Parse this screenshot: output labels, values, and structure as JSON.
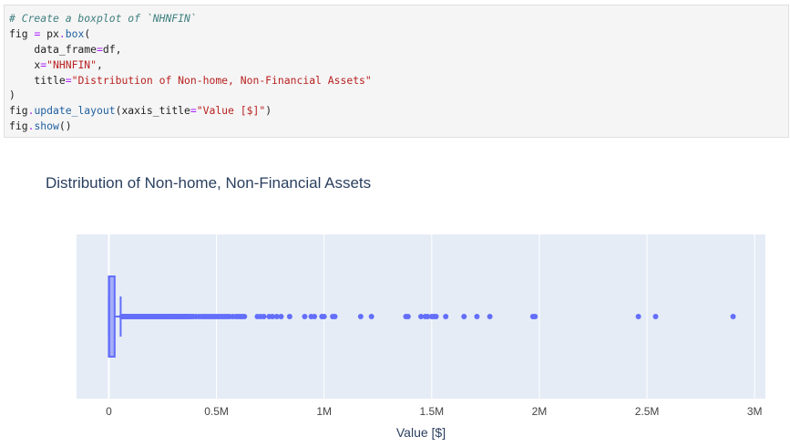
{
  "code_cell": {
    "lines": [
      [
        {
          "t": "# Create a boxplot of `NHNFIN`",
          "c": "comment"
        }
      ],
      [
        {
          "t": "fig ",
          "c": "plain"
        },
        {
          "t": "=",
          "c": "op"
        },
        {
          "t": " px",
          "c": "plain"
        },
        {
          "t": ".",
          "c": "op"
        },
        {
          "t": "box",
          "c": "attr"
        },
        {
          "t": "(",
          "c": "plain"
        }
      ],
      [
        {
          "t": "    data_frame",
          "c": "plain"
        },
        {
          "t": "=",
          "c": "op"
        },
        {
          "t": "df,",
          "c": "plain"
        }
      ],
      [
        {
          "t": "    x",
          "c": "plain"
        },
        {
          "t": "=",
          "c": "op"
        },
        {
          "t": "\"NHNFIN\"",
          "c": "str"
        },
        {
          "t": ",",
          "c": "plain"
        }
      ],
      [
        {
          "t": "    title",
          "c": "plain"
        },
        {
          "t": "=",
          "c": "op"
        },
        {
          "t": "\"Distribution of Non-home, Non-Financial Assets\"",
          "c": "str"
        }
      ],
      [
        {
          "t": ")",
          "c": "plain"
        }
      ],
      [
        {
          "t": "fig",
          "c": "plain"
        },
        {
          "t": ".",
          "c": "op"
        },
        {
          "t": "update_layout",
          "c": "attr"
        },
        {
          "t": "(xaxis_title",
          "c": "plain"
        },
        {
          "t": "=",
          "c": "op"
        },
        {
          "t": "\"Value [$]\"",
          "c": "str"
        },
        {
          "t": ")",
          "c": "plain"
        }
      ],
      [
        {
          "t": "fig",
          "c": "plain"
        },
        {
          "t": ".",
          "c": "op"
        },
        {
          "t": "show",
          "c": "attr"
        },
        {
          "t": "()",
          "c": "plain"
        }
      ]
    ]
  },
  "colors": {
    "plot_bg": "#e5ecf6",
    "grid": "#ffffff",
    "box": "#636efa",
    "text": "#2a3f5f",
    "tick_text": "#444444"
  },
  "chart_data": {
    "type": "box",
    "title": "Distribution of Non-home, Non-Financial Assets",
    "xlabel": "Value [$]",
    "ylabel": "",
    "xlim": [
      -150000,
      3050000
    ],
    "grid": true,
    "ticks": [
      {
        "value": 0,
        "label": "0"
      },
      {
        "value": 500000,
        "label": "0.5M"
      },
      {
        "value": 1000000,
        "label": "1M"
      },
      {
        "value": 1500000,
        "label": "1.5M"
      },
      {
        "value": 2000000,
        "label": "2M"
      },
      {
        "value": 2500000,
        "label": "2.5M"
      },
      {
        "value": 3000000,
        "label": "3M"
      }
    ],
    "series": [
      {
        "min": 0,
        "q1": 0,
        "median": 2000,
        "q3": 27000,
        "upper_fence": 55000,
        "outliers": [
          60000,
          65000,
          70000,
          75000,
          80000,
          85000,
          90000,
          95000,
          100000,
          105000,
          110000,
          115000,
          120000,
          125000,
          130000,
          135000,
          140000,
          145000,
          150000,
          155000,
          160000,
          165000,
          170000,
          175000,
          180000,
          185000,
          190000,
          195000,
          200000,
          205000,
          210000,
          215000,
          220000,
          225000,
          230000,
          235000,
          240000,
          245000,
          250000,
          255000,
          260000,
          265000,
          270000,
          275000,
          280000,
          285000,
          290000,
          295000,
          300000,
          305000,
          310000,
          315000,
          320000,
          325000,
          330000,
          335000,
          340000,
          345000,
          350000,
          355000,
          360000,
          365000,
          370000,
          378000,
          385000,
          393000,
          405000,
          418000,
          430000,
          440000,
          450000,
          460000,
          470000,
          480000,
          490000,
          500000,
          510000,
          520000,
          530000,
          540000,
          550000,
          560000,
          575000,
          590000,
          600000,
          610000,
          620000,
          630000,
          690000,
          705000,
          720000,
          745000,
          760000,
          780000,
          800000,
          840000,
          910000,
          940000,
          955000,
          990000,
          1000000,
          1040000,
          1050000,
          1170000,
          1220000,
          1380000,
          1390000,
          1450000,
          1470000,
          1480000,
          1500000,
          1510000,
          1520000,
          1565000,
          1650000,
          1710000,
          1770000,
          1970000,
          1980000,
          2460000,
          2540000,
          2900000
        ]
      }
    ]
  }
}
